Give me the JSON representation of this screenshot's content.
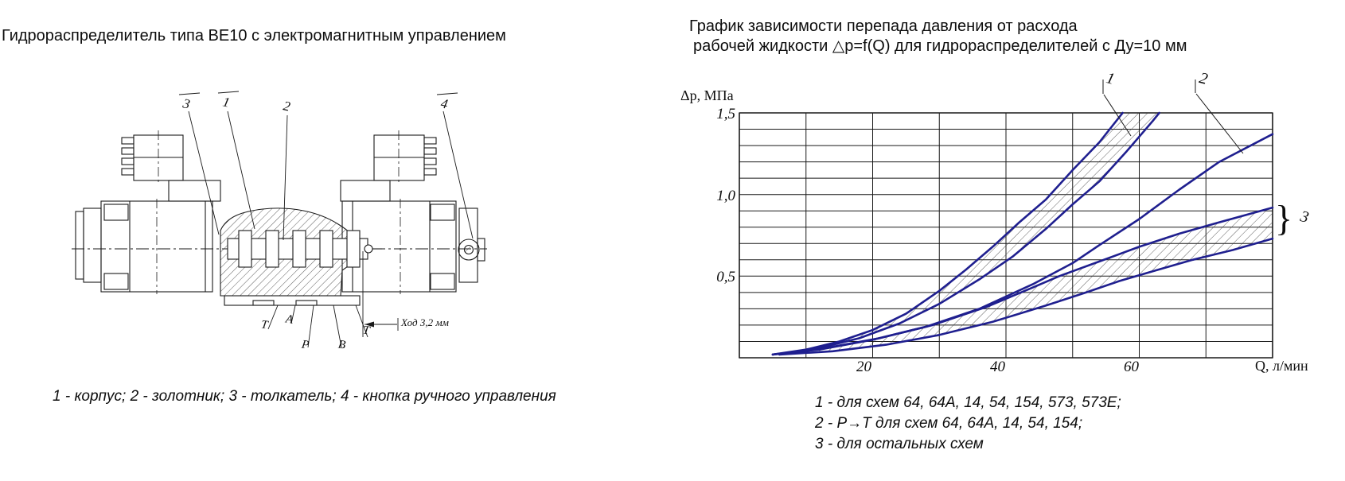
{
  "left_panel": {
    "title": "Гидрораспределитель типа ВЕ10 с электромагнитным управлением",
    "caption": "1 -  корпус; 2 -  золотник; 3 -  толкатель; 4 -  кнопка ручного управления",
    "part_labels": {
      "n1": "1",
      "n2": "2",
      "n3": "3",
      "n4": "4"
    },
    "port_labels": [
      "Т",
      "А",
      "Р",
      "В",
      "Т"
    ],
    "stroke_note": "Ход 3,2 мм"
  },
  "right_panel": {
    "title_line1": "График зависимости перепада давления от расхода",
    "title_line2": "рабочей жидкости △p=f(Q) для гидрораспределителей с Ду=10 мм",
    "legend": [
      "1 -  для схем 64, 64А, 14, 54, 154, 573, 573Е;",
      "2 -  Р→Т для схем 64, 64А, 14, 54, 154;",
      "3 -  для остальных схем"
    ],
    "curve_labels": {
      "c1": "1",
      "c2": "2",
      "c3": "3",
      "brace": "}"
    }
  },
  "chart_data": {
    "type": "line",
    "title": "График зависимости перепада давления от расхода рабочей жидкости △p=f(Q) для гидрораспределителей с Ду=10 мм",
    "xlabel": "Q, л/мин",
    "ylabel": "Δp, МПа",
    "xlim": [
      0,
      80
    ],
    "ylim": [
      0,
      1.5
    ],
    "x_ticks": [
      20,
      40,
      60
    ],
    "x_tick_labels": [
      "20",
      "40",
      "60"
    ],
    "y_ticks": [
      0.5,
      1.0,
      1.5
    ],
    "y_tick_labels": [
      "0,5",
      "1,0",
      "1,5"
    ],
    "grid": {
      "x_step": 10,
      "y_step": 0.1
    },
    "line_color": "#1f1f8f",
    "legend_position": "below",
    "series": [
      {
        "name": "curve1_upper",
        "label": "1",
        "points": [
          [
            5,
            0.02
          ],
          [
            10,
            0.05
          ],
          [
            15,
            0.1
          ],
          [
            20,
            0.17
          ],
          [
            25,
            0.27
          ],
          [
            30,
            0.41
          ],
          [
            34,
            0.54
          ],
          [
            38,
            0.68
          ],
          [
            42,
            0.83
          ],
          [
            46,
            0.97
          ],
          [
            50,
            1.15
          ],
          [
            54,
            1.32
          ],
          [
            57.5,
            1.5
          ]
        ]
      },
      {
        "name": "curve1_lower",
        "label": "1",
        "points": [
          [
            6,
            0.02
          ],
          [
            12,
            0.06
          ],
          [
            18,
            0.12
          ],
          [
            24,
            0.21
          ],
          [
            30,
            0.33
          ],
          [
            36,
            0.48
          ],
          [
            41,
            0.62
          ],
          [
            46,
            0.79
          ],
          [
            50,
            0.94
          ],
          [
            54,
            1.08
          ],
          [
            58,
            1.26
          ],
          [
            62,
            1.45
          ],
          [
            63,
            1.5
          ]
        ]
      },
      {
        "name": "curve2",
        "label": "2",
        "points": [
          [
            5,
            0.02
          ],
          [
            12,
            0.05
          ],
          [
            20,
            0.11
          ],
          [
            28,
            0.19
          ],
          [
            36,
            0.3
          ],
          [
            44,
            0.45
          ],
          [
            50,
            0.58
          ],
          [
            54,
            0.69
          ],
          [
            60,
            0.85
          ],
          [
            66,
            1.03
          ],
          [
            72,
            1.2
          ],
          [
            80,
            1.37
          ]
        ]
      },
      {
        "name": "curve3_upper",
        "label": "3",
        "points": [
          [
            5,
            0.02
          ],
          [
            13,
            0.06
          ],
          [
            21,
            0.12
          ],
          [
            29,
            0.2
          ],
          [
            37,
            0.31
          ],
          [
            44,
            0.43
          ],
          [
            48,
            0.5
          ],
          [
            54,
            0.59
          ],
          [
            60,
            0.68
          ],
          [
            66,
            0.76
          ],
          [
            72,
            0.83
          ],
          [
            80,
            0.92
          ]
        ]
      },
      {
        "name": "curve3_lower",
        "label": "3",
        "points": [
          [
            6,
            0.02
          ],
          [
            14,
            0.04
          ],
          [
            22,
            0.08
          ],
          [
            30,
            0.14
          ],
          [
            38,
            0.22
          ],
          [
            46,
            0.32
          ],
          [
            52,
            0.4
          ],
          [
            57,
            0.47
          ],
          [
            62,
            0.53
          ],
          [
            68,
            0.6
          ],
          [
            74,
            0.66
          ],
          [
            80,
            0.73
          ]
        ]
      }
    ],
    "bands": [
      {
        "upper": "curve1_upper",
        "lower": "curve1_lower",
        "fill": "hatch"
      },
      {
        "upper": "curve3_upper",
        "lower": "curve3_lower",
        "fill": "hatch"
      }
    ]
  }
}
